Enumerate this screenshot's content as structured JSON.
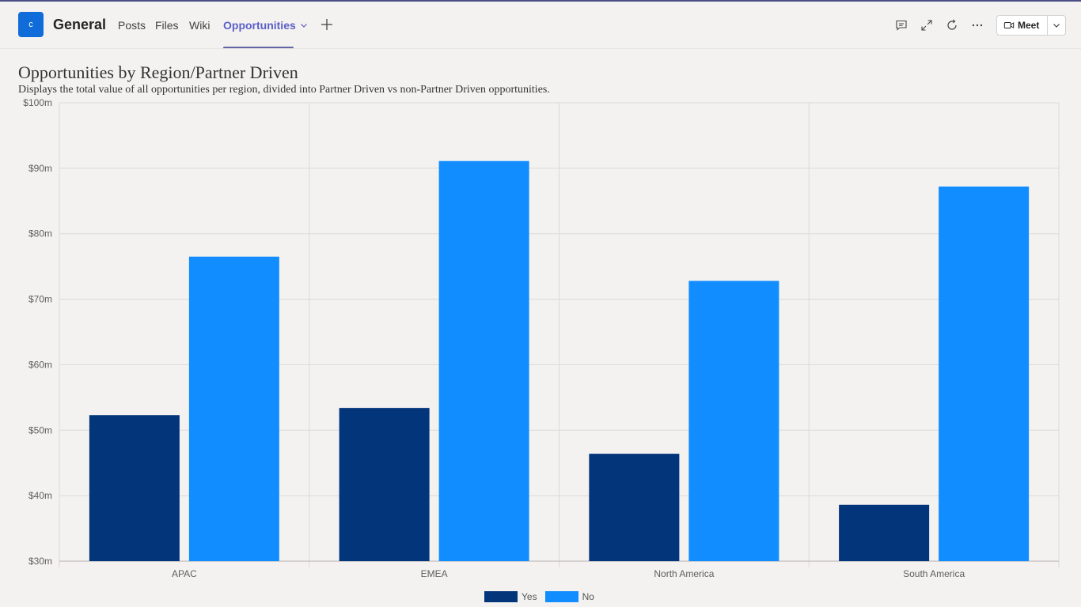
{
  "header": {
    "team_initial": "c",
    "channel_name": "General",
    "tabs": [
      {
        "label": "Posts"
      },
      {
        "label": "Files"
      },
      {
        "label": "Wiki"
      },
      {
        "label": "Opportunities"
      }
    ],
    "active_tab": "Opportunities",
    "icons": [
      "conversation-icon",
      "expand-icon",
      "refresh-icon",
      "more-icon"
    ],
    "meet_label": "Meet",
    "accent_color": "#6264a7"
  },
  "report": {
    "title": "Opportunities by Region/Partner Driven",
    "subtitle": "Displays the total value of all opportunities per region, divided into Partner Driven vs non-Partner Driven opportunities."
  },
  "chart_data": {
    "type": "bar",
    "categories": [
      "APAC",
      "EMEA",
      "North America",
      "South America"
    ],
    "series": [
      {
        "name": "Yes",
        "color": "#03357a",
        "values": [
          52.3,
          53.4,
          46.4,
          38.6
        ]
      },
      {
        "name": "No",
        "color": "#118dff",
        "values": [
          76.5,
          91.1,
          72.8,
          87.2
        ]
      }
    ],
    "y_ticks": [
      "$30m",
      "$40m",
      "$50m",
      "$60m",
      "$70m",
      "$80m",
      "$90m",
      "$100m"
    ],
    "ylim": [
      30,
      100
    ],
    "y_unit": "$m",
    "grid": true,
    "legend_position": "bottom-center"
  }
}
